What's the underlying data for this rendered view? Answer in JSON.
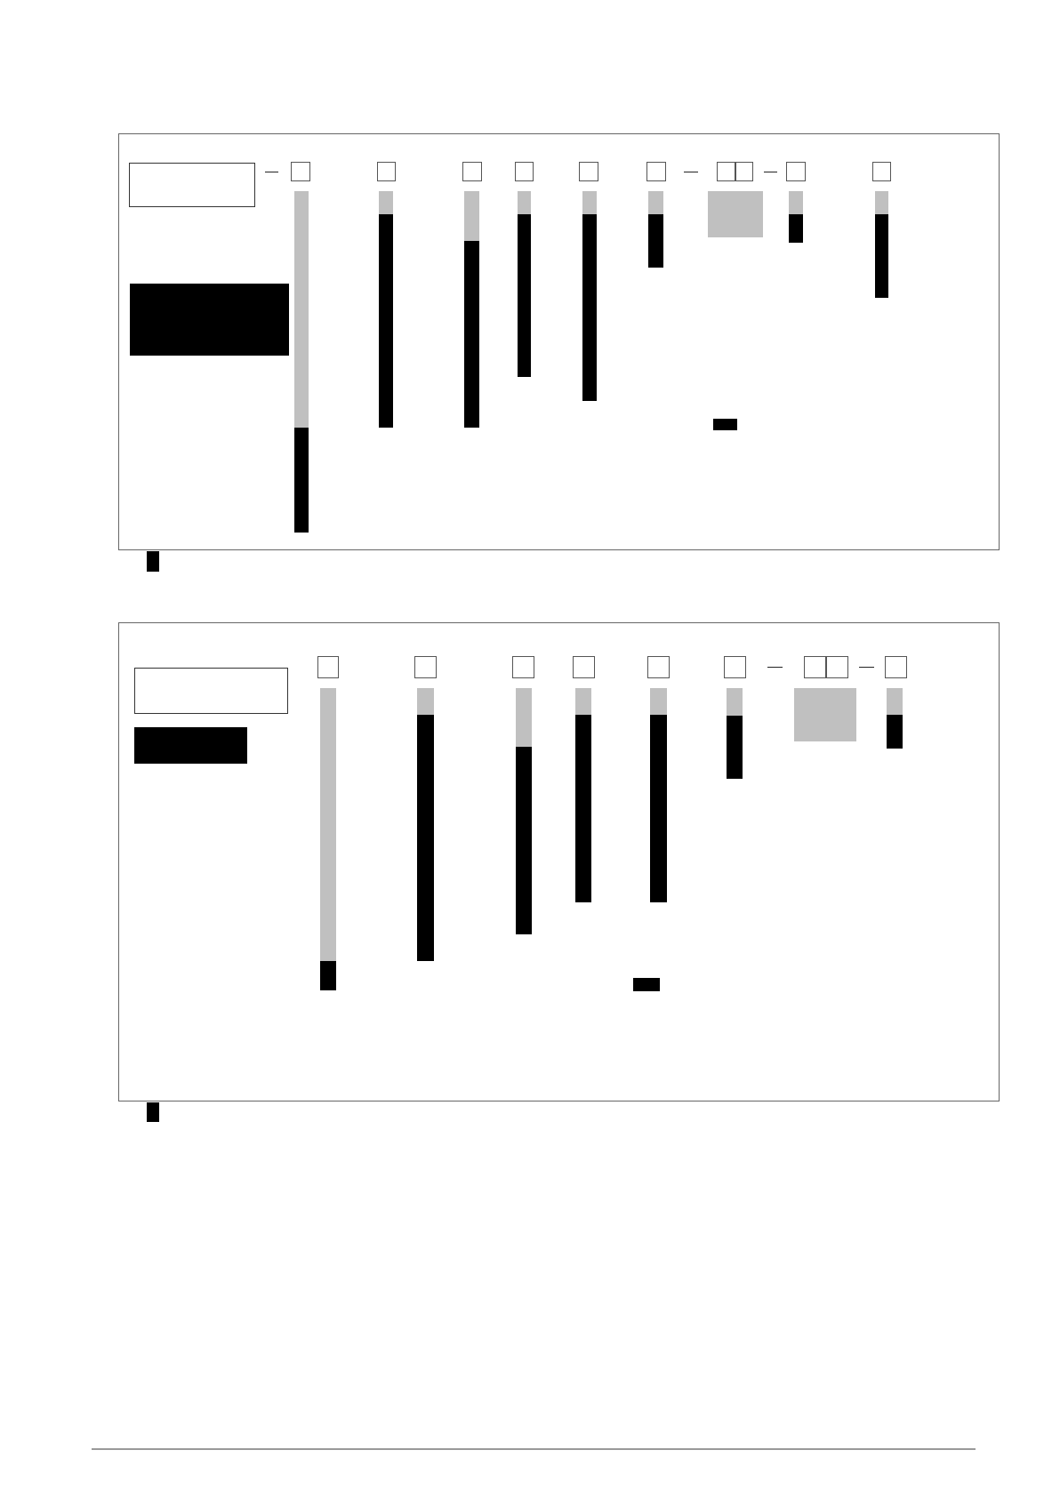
{
  "colors": {
    "panel_border": "#666666",
    "filled": "#000000",
    "shaded": "#c0c0c0",
    "rule": "#999999",
    "background": "#ffffff"
  },
  "panels": [
    {
      "name": "top-panel",
      "columns": 9,
      "bars": 8
    },
    {
      "name": "bottom-panel",
      "columns": 8,
      "bars": 7
    }
  ]
}
